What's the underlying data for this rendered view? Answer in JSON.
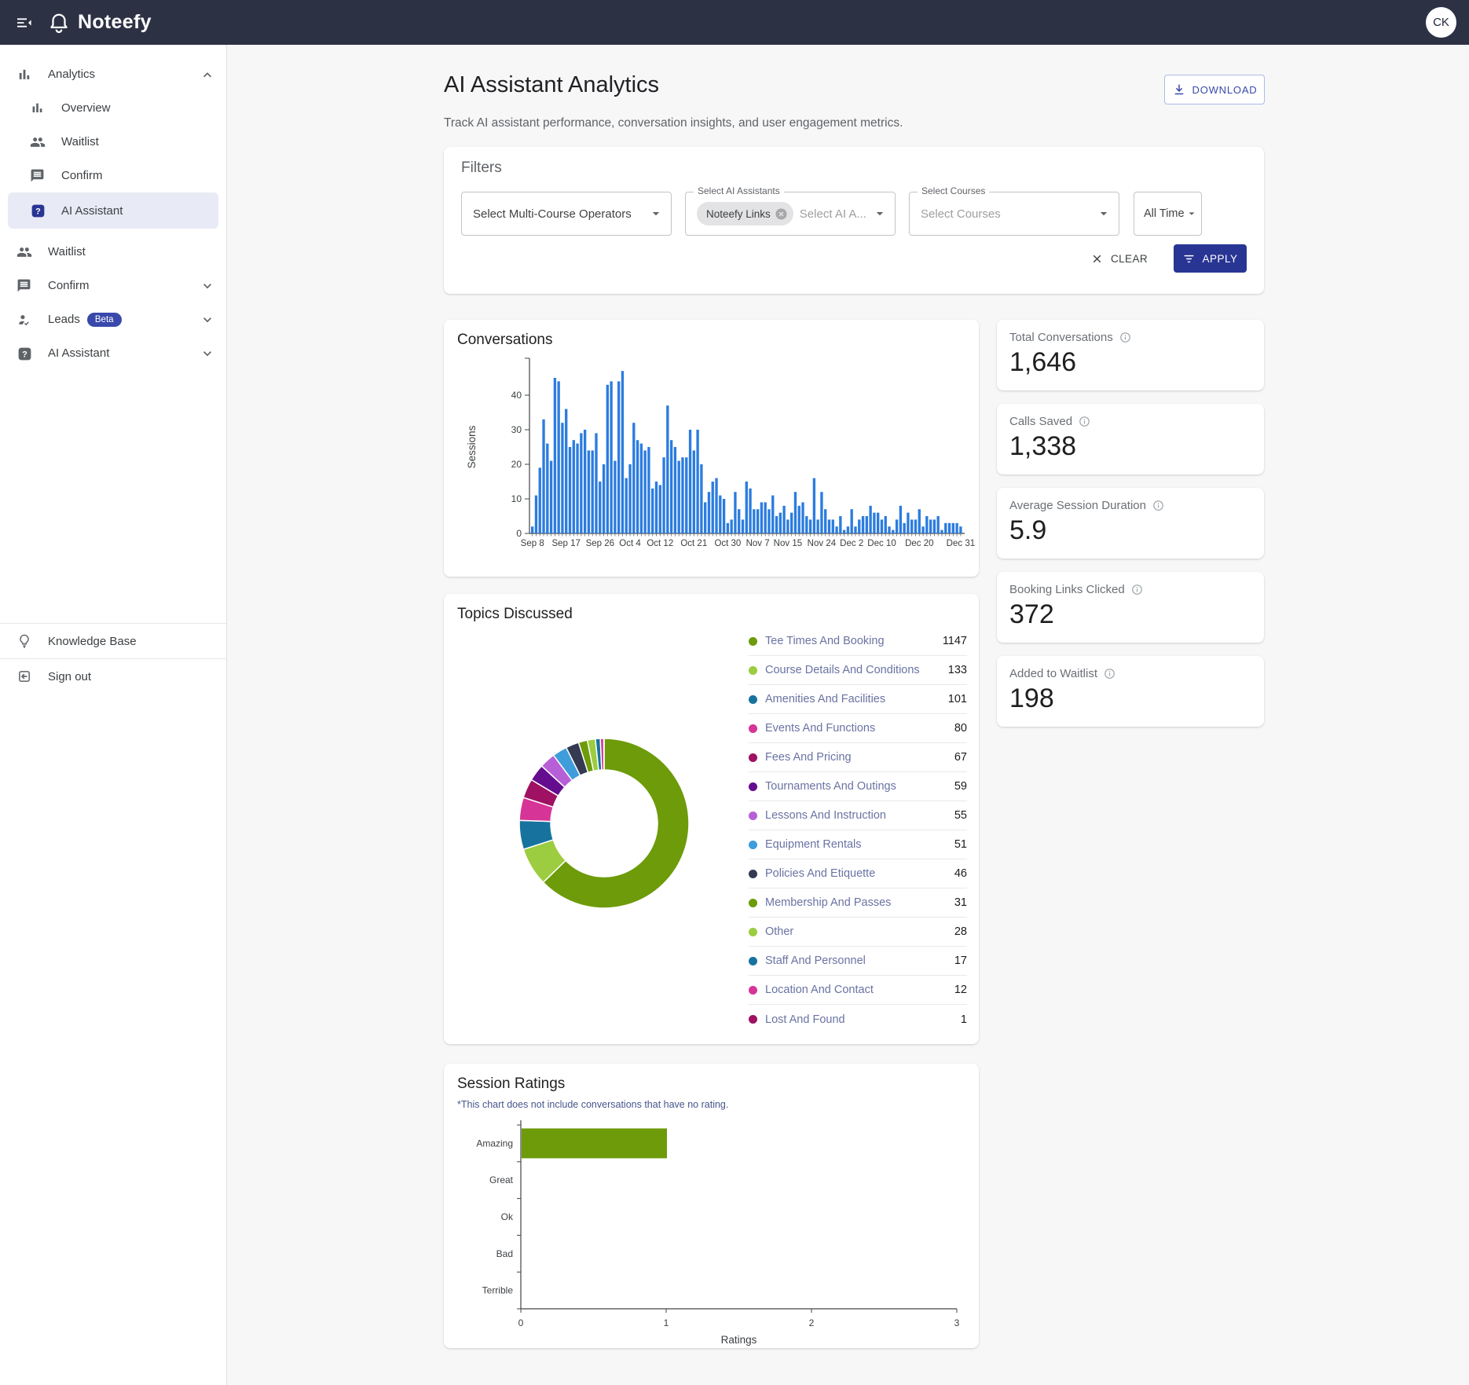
{
  "header": {
    "logo_text": "Noteefy",
    "avatar_initials": "CK"
  },
  "sidebar": {
    "items": [
      {
        "label": "Analytics",
        "icon": "bar-chart-icon",
        "chevron": "up"
      },
      {
        "label": "Overview",
        "icon": "bar-chart-icon"
      },
      {
        "label": "Waitlist",
        "icon": "people-icon"
      },
      {
        "label": "Confirm",
        "icon": "chat-icon"
      },
      {
        "label": "AI Assistant",
        "icon": "help-square-icon",
        "selected": true
      },
      {
        "label": "Waitlist",
        "icon": "people-icon"
      },
      {
        "label": "Confirm",
        "icon": "chat-icon",
        "chevron": "down"
      },
      {
        "label": "Leads",
        "icon": "person-check-icon",
        "badge": "Beta",
        "chevron": "down"
      },
      {
        "label": "AI Assistant",
        "icon": "help-square-icon",
        "chevron": "down"
      }
    ],
    "footer": [
      {
        "label": "Knowledge Base",
        "icon": "lightbulb-icon"
      },
      {
        "label": "Sign out",
        "icon": "sign-out-icon"
      }
    ]
  },
  "page": {
    "title": "AI Assistant Analytics",
    "subtitle": "Track AI assistant performance, conversation insights, and user engagement metrics.",
    "download_label": "DOWNLOAD"
  },
  "filters": {
    "heading": "Filters",
    "operators_placeholder": "Select Multi-Course Operators",
    "assistants_label": "Select AI Assistants",
    "assistants_chip": "Noteefy Links",
    "assistants_placeholder": "Select AI A...",
    "courses_label": "Select Courses",
    "courses_placeholder": "Select Courses",
    "time_range": "All Time",
    "clear_label": "CLEAR",
    "apply_label": "APPLY"
  },
  "stats": [
    {
      "label": "Total Conversations",
      "value": "1,646"
    },
    {
      "label": "Calls Saved",
      "value": "1,338"
    },
    {
      "label": "Average Session Duration",
      "value": "5.9"
    },
    {
      "label": "Booking Links Clicked",
      "value": "372"
    },
    {
      "label": "Added to Waitlist",
      "value": "198"
    }
  ],
  "chart_data": [
    {
      "type": "bar",
      "title": "Conversations",
      "ylabel": "Sessions",
      "ylim": [
        0,
        50
      ],
      "yticks": [
        0,
        10,
        20,
        30,
        40
      ],
      "bar_color": "#2b7cdf",
      "xticks": [
        {
          "label": "Sep 8",
          "index": 0
        },
        {
          "label": "Sep 17",
          "index": 9
        },
        {
          "label": "Sep 26",
          "index": 18
        },
        {
          "label": "Oct 4",
          "index": 26
        },
        {
          "label": "Oct 12",
          "index": 34
        },
        {
          "label": "Oct 21",
          "index": 43
        },
        {
          "label": "Oct 30",
          "index": 52
        },
        {
          "label": "Nov 7",
          "index": 60
        },
        {
          "label": "Nov 15",
          "index": 68
        },
        {
          "label": "Nov 24",
          "index": 77
        },
        {
          "label": "Dec 2",
          "index": 85
        },
        {
          "label": "Dec 10",
          "index": 93
        },
        {
          "label": "Dec 20",
          "index": 103
        },
        {
          "label": "Dec 31",
          "index": 114
        }
      ],
      "values": [
        2,
        11,
        19,
        33,
        26,
        21,
        45,
        44,
        32,
        36,
        25,
        27,
        26,
        29,
        30,
        24,
        24,
        29,
        15,
        20,
        43,
        44,
        21,
        44,
        47,
        16,
        20,
        32,
        27,
        26,
        24,
        25,
        13,
        15,
        14,
        22,
        37,
        27,
        25,
        21,
        22,
        22,
        30,
        24,
        30,
        20,
        9,
        12,
        15,
        16,
        11,
        10,
        3,
        4,
        12,
        7,
        4,
        15,
        13,
        7,
        7,
        9,
        9,
        7,
        11,
        5,
        6,
        8,
        4,
        6,
        12,
        8,
        9,
        5,
        4,
        16,
        4,
        12,
        7,
        4,
        4,
        2,
        5,
        1,
        2,
        7,
        2,
        4,
        5,
        5,
        8,
        6,
        6,
        4,
        5,
        2,
        1,
        4,
        8,
        3,
        6,
        4,
        4,
        7,
        2,
        5,
        4,
        4,
        5,
        1,
        3,
        3,
        3,
        3,
        2
      ]
    },
    {
      "type": "pie",
      "title": "Topics Discussed",
      "items": [
        {
          "label": "Tee Times And Booking",
          "value": 1147,
          "color": "#6d9b0a"
        },
        {
          "label": "Course Details And Conditions",
          "value": 133,
          "color": "#9ccc3f"
        },
        {
          "label": "Amenities And Facilities",
          "value": 101,
          "color": "#17739e"
        },
        {
          "label": "Events And Functions",
          "value": 80,
          "color": "#d63497"
        },
        {
          "label": "Fees And Pricing",
          "value": 67,
          "color": "#9e1163"
        },
        {
          "label": "Tournaments And Outings",
          "value": 59,
          "color": "#650d8f"
        },
        {
          "label": "Lessons And Instruction",
          "value": 55,
          "color": "#b75fd6"
        },
        {
          "label": "Equipment Rentals",
          "value": 51,
          "color": "#3f9ddb"
        },
        {
          "label": "Policies And Etiquette",
          "value": 46,
          "color": "#333a52"
        },
        {
          "label": "Membership And Passes",
          "value": 31,
          "color": "#6d9b0a"
        },
        {
          "label": "Other",
          "value": 28,
          "color": "#9ccc3f"
        },
        {
          "label": "Staff And Personnel",
          "value": 17,
          "color": "#17739e"
        },
        {
          "label": "Location And Contact",
          "value": 12,
          "color": "#d63497"
        },
        {
          "label": "Lost And Found",
          "value": 1,
          "color": "#9e1163"
        }
      ]
    },
    {
      "type": "bar",
      "orientation": "horizontal",
      "title": "Session Ratings",
      "note": "*This chart does not include conversations that have no rating.",
      "categories": [
        "Amazing",
        "Great",
        "Ok",
        "Bad",
        "Terrible"
      ],
      "values": [
        1,
        0,
        0,
        0,
        0
      ],
      "xlabel": "Ratings",
      "xlim": [
        0,
        3
      ],
      "xticks": [
        0,
        1,
        2,
        3
      ],
      "bar_color": "#6d9b0a"
    }
  ]
}
